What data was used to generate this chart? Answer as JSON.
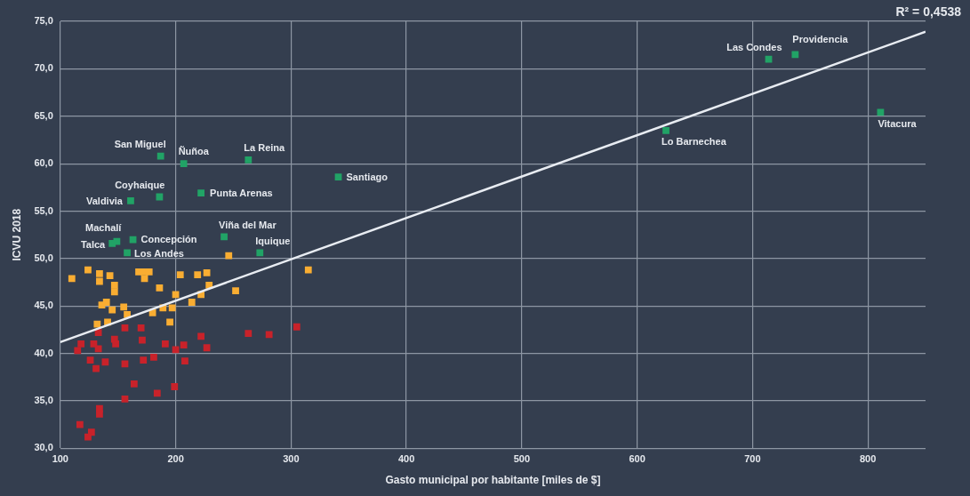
{
  "chart_data": {
    "type": "scatter",
    "xlabel": "Gasto municipal por habitante [miles de $]",
    "ylabel": "ICVU 2018",
    "xlim": [
      100,
      850
    ],
    "xticks": [
      100,
      200,
      300,
      400,
      500,
      600,
      700,
      800
    ],
    "ylim": [
      30,
      75
    ],
    "yticks": [
      {
        "value": 30,
        "label": "30,0"
      },
      {
        "value": 35,
        "label": "35,0"
      },
      {
        "value": 40,
        "label": "40,0"
      },
      {
        "value": 45,
        "label": "45,0"
      },
      {
        "value": 50,
        "label": "50,0"
      },
      {
        "value": 55,
        "label": "55,0"
      },
      {
        "value": 60,
        "label": "60,0"
      },
      {
        "value": 65,
        "label": "65,0"
      },
      {
        "value": 70,
        "label": "70,0"
      },
      {
        "value": 75,
        "label": "75,0"
      }
    ],
    "grid": true,
    "legend": false,
    "marker": "square",
    "series": [
      {
        "color": "#21a366",
        "x": [
          187,
          207,
          263,
          341,
          186,
          161,
          222,
          149,
          145,
          163,
          158,
          242,
          273,
          625,
          714,
          737,
          811
        ],
        "values": [
          60.8,
          60.0,
          60.4,
          58.6,
          56.5,
          56.1,
          56.9,
          51.8,
          51.6,
          52.0,
          50.6,
          52.3,
          50.6,
          63.5,
          71.0,
          71.5,
          65.4
        ]
      },
      {
        "color": "#f9ad32",
        "x": [
          110,
          124,
          134,
          143,
          134,
          147,
          147,
          168,
          173,
          177,
          173,
          186,
          204,
          219,
          227,
          229,
          246,
          315,
          252,
          200,
          214,
          222,
          195,
          197,
          189,
          180,
          155,
          140,
          136,
          145,
          158,
          132,
          141
        ],
        "values": [
          47.9,
          48.8,
          48.4,
          48.2,
          47.6,
          47.2,
          46.5,
          48.6,
          48.6,
          48.6,
          47.9,
          46.9,
          48.3,
          48.3,
          48.5,
          47.2,
          50.3,
          48.8,
          46.6,
          46.2,
          45.4,
          46.2,
          43.3,
          44.8,
          44.8,
          44.3,
          44.9,
          45.4,
          45.1,
          44.6,
          44.1,
          43.1,
          43.3
        ]
      },
      {
        "color": "#c8222a",
        "x": [
          133,
          156,
          170,
          147,
          148,
          171,
          118,
          129,
          133,
          115,
          191,
          207,
          200,
          222,
          227,
          263,
          281,
          305,
          126,
          131,
          139,
          156,
          172,
          181,
          208,
          164,
          184,
          199,
          156,
          134,
          134,
          117,
          127,
          124
        ],
        "values": [
          42.2,
          42.7,
          42.7,
          41.5,
          41.0,
          41.4,
          41.0,
          41.0,
          40.5,
          40.3,
          41.0,
          40.9,
          40.4,
          41.8,
          40.6,
          42.1,
          42.0,
          42.8,
          39.3,
          38.4,
          39.1,
          38.9,
          39.3,
          39.6,
          39.2,
          36.8,
          35.8,
          36.5,
          35.2,
          34.2,
          33.6,
          32.5,
          31.7,
          31.2
        ]
      },
      {
        "type": "line",
        "marker": "none",
        "color": "#e8ecf2",
        "x": [
          100,
          850
        ],
        "values": [
          41.2,
          73.9
        ]
      }
    ],
    "annotations": [
      {
        "text": "San Miguel",
        "x": 187,
        "y": 60.8
      },
      {
        "text": "Ñuñoa",
        "x": 207,
        "y": 60.0
      },
      {
        "text": "La Reina",
        "x": 263,
        "y": 60.4
      },
      {
        "text": "Santiago",
        "x": 341,
        "y": 58.6
      },
      {
        "text": "Coyhaique",
        "x": 186,
        "y": 56.5
      },
      {
        "text": "Valdivia",
        "x": 161,
        "y": 56.1
      },
      {
        "text": "Punta Arenas",
        "x": 222,
        "y": 56.9
      },
      {
        "text": "Machalí",
        "x": 149,
        "y": 51.8
      },
      {
        "text": "Talca",
        "x": 145,
        "y": 51.6
      },
      {
        "text": "Concepción",
        "x": 163,
        "y": 52.0
      },
      {
        "text": "Los Andes",
        "x": 158,
        "y": 50.6
      },
      {
        "text": "Viña del Mar",
        "x": 242,
        "y": 52.3
      },
      {
        "text": "Iquique",
        "x": 273,
        "y": 50.6
      },
      {
        "text": "Lo Barnechea",
        "x": 625,
        "y": 63.5
      },
      {
        "text": "Las Condes",
        "x": 714,
        "y": 71.0
      },
      {
        "text": "Providencia",
        "x": 737,
        "y": 71.5
      },
      {
        "text": "Vitacura",
        "x": 811,
        "y": 65.4
      },
      "R² = 0,4538"
    ]
  }
}
